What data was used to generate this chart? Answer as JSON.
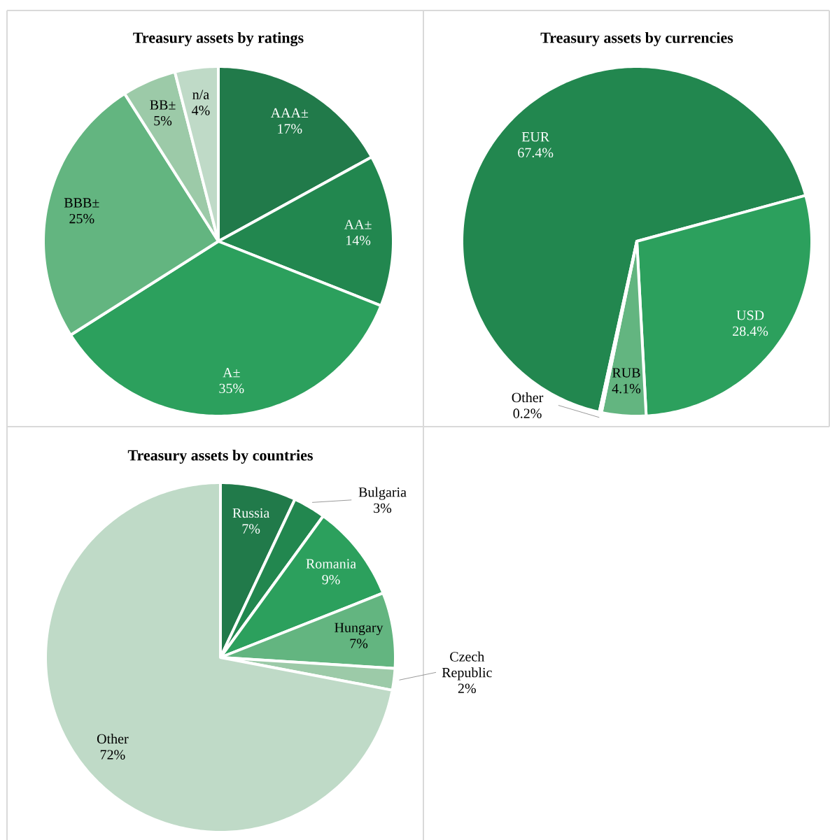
{
  "chart_data": [
    {
      "type": "pie",
      "title": "Treasury assets by ratings",
      "categories": [
        "AAA±",
        "AA±",
        "A±",
        "BBB±",
        "BB±",
        "n/a"
      ],
      "values": [
        17,
        14,
        35,
        25,
        5,
        4
      ],
      "value_labels": [
        "17%",
        "14%",
        "35%",
        "25%",
        "5%",
        "4%"
      ],
      "colors": [
        "#217a4a",
        "#22874f",
        "#2ca05d",
        "#63b580",
        "#9ccaa8",
        "#bfdac7"
      ]
    },
    {
      "type": "pie",
      "title": "Treasury assets by currencies",
      "categories": [
        "EUR",
        "USD",
        "RUB",
        "Other"
      ],
      "values": [
        67.4,
        28.4,
        4.1,
        0.2
      ],
      "value_labels": [
        "67.4%",
        "28.4%",
        "4.1%",
        "0.2%"
      ],
      "colors": [
        "#22874f",
        "#2ca05d",
        "#63b580",
        "#9ccaa8"
      ]
    },
    {
      "type": "pie",
      "title": "Treasury assets by countries",
      "categories": [
        "Russia",
        "Bulgaria",
        "Romania",
        "Hungary",
        "Czech Republic",
        "Other"
      ],
      "values": [
        7,
        3,
        9,
        7,
        2,
        72
      ],
      "value_labels": [
        "7%",
        "3%",
        "9%",
        "7%",
        "2%",
        "72%"
      ],
      "colors": [
        "#217a4a",
        "#22874f",
        "#2ca05d",
        "#63b580",
        "#9ccaa8",
        "#bfdac7"
      ]
    }
  ]
}
